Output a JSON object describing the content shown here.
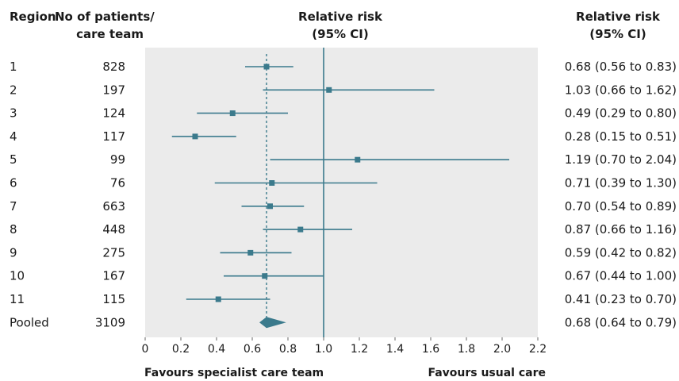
{
  "headers": {
    "region": "Region",
    "patients_line1": "No of patients/",
    "patients_line2": "care team",
    "rr_line1": "Relative risk",
    "rr_line2": "(95% CI)",
    "rr_right_line1": "Relative risk",
    "rr_right_line2": "(95% CI)"
  },
  "footer": {
    "left": "Favours specialist care team",
    "right": "Favours usual care"
  },
  "colors": {
    "marker": "#3b7a8c",
    "panel": "#ebebeb",
    "reference_line": "#3b7a8c"
  },
  "chart_data": {
    "type": "forest",
    "xlim": [
      0,
      2.2
    ],
    "xticks": [
      "0",
      "0.2",
      "0.4",
      "0.6",
      "0.8",
      "1.0",
      "1.2",
      "1.4",
      "1.6",
      "1.8",
      "2.0",
      "2.2"
    ],
    "reference_value": 1.0,
    "pooled_reference": 0.68,
    "rows": [
      {
        "region": "1",
        "patients": "828",
        "rr": 0.68,
        "lo": 0.56,
        "hi": 0.83,
        "ci_text": "0.68 (0.56 to 0.83)"
      },
      {
        "region": "2",
        "patients": "197",
        "rr": 1.03,
        "lo": 0.66,
        "hi": 1.62,
        "ci_text": "1.03 (0.66 to 1.62)"
      },
      {
        "region": "3",
        "patients": "124",
        "rr": 0.49,
        "lo": 0.29,
        "hi": 0.8,
        "ci_text": "0.49 (0.29 to 0.80)"
      },
      {
        "region": "4",
        "patients": "117",
        "rr": 0.28,
        "lo": 0.15,
        "hi": 0.51,
        "ci_text": "0.28 (0.15 to 0.51)"
      },
      {
        "region": "5",
        "patients": "99",
        "rr": 1.19,
        "lo": 0.7,
        "hi": 2.04,
        "ci_text": "1.19 (0.70 to 2.04)"
      },
      {
        "region": "6",
        "patients": "76",
        "rr": 0.71,
        "lo": 0.39,
        "hi": 1.3,
        "ci_text": "0.71 (0.39 to 1.30)"
      },
      {
        "region": "7",
        "patients": "663",
        "rr": 0.7,
        "lo": 0.54,
        "hi": 0.89,
        "ci_text": "0.70 (0.54 to 0.89)"
      },
      {
        "region": "8",
        "patients": "448",
        "rr": 0.87,
        "lo": 0.66,
        "hi": 1.16,
        "ci_text": "0.87 (0.66 to 1.16)"
      },
      {
        "region": "9",
        "patients": "275",
        "rr": 0.59,
        "lo": 0.42,
        "hi": 0.82,
        "ci_text": "0.59 (0.42 to 0.82)"
      },
      {
        "region": "10",
        "patients": "167",
        "rr": 0.67,
        "lo": 0.44,
        "hi": 1.0,
        "ci_text": "0.67 (0.44 to 1.00)"
      },
      {
        "region": "11",
        "patients": "115",
        "rr": 0.41,
        "lo": 0.23,
        "hi": 0.7,
        "ci_text": "0.41 (0.23 to 0.70)"
      }
    ],
    "pooled": {
      "region": "Pooled",
      "patients": "3109",
      "rr": 0.68,
      "lo": 0.64,
      "hi": 0.79,
      "ci_text": "0.68 (0.64 to 0.79)"
    }
  }
}
